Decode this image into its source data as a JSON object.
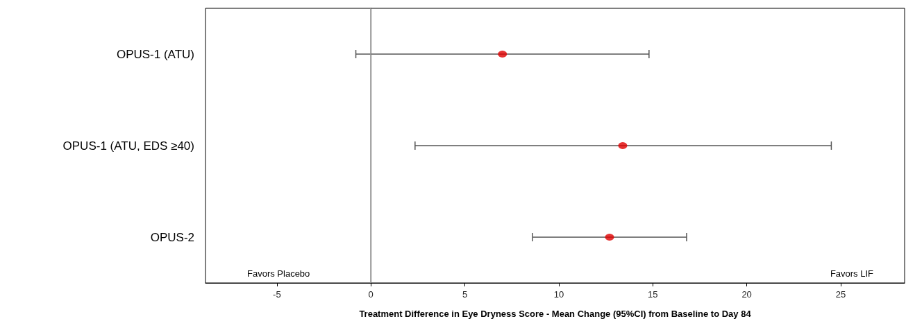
{
  "chart_data": {
    "type": "scatter",
    "orientation": "horizontal",
    "xlabel": "Treatment Difference in Eye Dryness Score - Mean Change (95%CI) from Baseline to Day 84",
    "categories": [
      "OPUS-1 (ATU)",
      "OPUS-1 (ATU, EDS ≥40)",
      "OPUS-2"
    ],
    "values": [
      7.0,
      13.4,
      12.7
    ],
    "errors": [
      [
        -0.8,
        14.8
      ],
      [
        2.35,
        24.5
      ],
      [
        8.6,
        16.8
      ]
    ],
    "color": "#e00000",
    "marker": "circle",
    "grid": false,
    "xlim": [
      -8.8,
      28.4
    ],
    "xticks": [
      -5,
      0,
      5,
      10,
      15,
      20,
      25
    ],
    "ref_lines": [
      {
        "axis": "x",
        "value": 0,
        "color": "#999999"
      }
    ],
    "annotations": [
      "Favors Placebo",
      "Favors LIF"
    ]
  }
}
